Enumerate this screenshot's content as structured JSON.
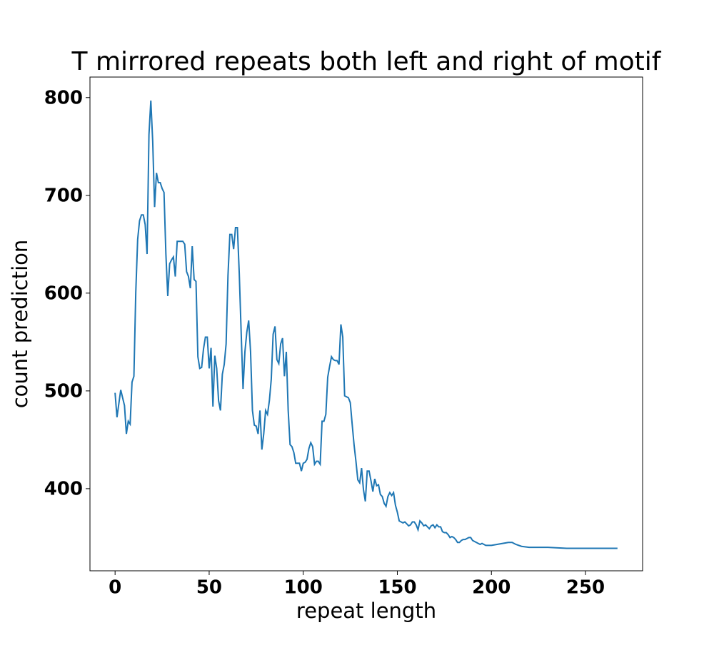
{
  "chart_data": {
    "type": "line",
    "title": "T mirrored repeats both left and right of motif",
    "xlabel": "repeat length",
    "ylabel": "count prediction",
    "xlim": [
      -13.35,
      280.35
    ],
    "ylim": [
      316,
      821
    ],
    "xticks": [
      0,
      50,
      100,
      150,
      200,
      250
    ],
    "yticks": [
      400,
      500,
      600,
      700,
      800
    ],
    "grid": false,
    "series": [
      {
        "name": "count prediction",
        "color": "#1f77b4",
        "x": [
          0,
          1,
          3,
          5,
          6,
          7,
          8,
          9,
          10,
          11,
          12,
          13,
          14,
          15,
          16,
          17,
          18,
          19,
          20,
          21,
          22,
          23,
          24,
          25,
          26,
          27,
          28,
          29,
          30,
          31,
          32,
          33,
          34,
          35,
          36,
          37,
          38,
          39,
          40,
          41,
          42,
          43,
          44,
          45,
          46,
          47,
          48,
          49,
          50,
          51,
          52,
          53,
          54,
          55,
          56,
          57,
          58,
          59,
          60,
          61,
          62,
          63,
          64,
          65,
          66,
          67,
          68,
          69,
          70,
          71,
          72,
          73,
          74,
          75,
          76,
          77,
          78,
          79,
          80,
          81,
          82,
          83,
          84,
          85,
          86,
          87,
          88,
          89,
          90,
          91,
          92,
          93,
          94,
          95,
          96,
          97,
          98,
          99,
          100,
          101,
          102,
          103,
          104,
          105,
          106,
          107,
          108,
          109,
          110,
          111,
          112,
          113,
          114,
          115,
          116,
          117,
          118,
          119,
          120,
          121,
          122,
          123,
          124,
          125,
          126,
          127,
          128,
          129,
          130,
          131,
          132,
          133,
          134,
          135,
          136,
          137,
          138,
          139,
          140,
          141,
          142,
          143,
          144,
          145,
          146,
          147,
          148,
          149,
          150,
          151,
          152,
          153,
          154,
          155,
          156,
          157,
          158,
          159,
          160,
          161,
          162,
          163,
          164,
          165,
          166,
          167,
          168,
          169,
          170,
          171,
          172,
          173,
          174,
          175,
          176,
          177,
          178,
          179,
          180,
          181,
          182,
          183,
          184,
          185,
          186,
          187,
          188,
          189,
          190,
          191,
          192,
          193,
          194,
          195,
          196,
          197,
          198,
          200,
          203,
          206,
          209,
          211,
          213,
          216,
          220,
          225,
          230,
          240,
          250,
          267
        ],
        "values": [
          498,
          473,
          501,
          485,
          456,
          469,
          466,
          509,
          515,
          601,
          655,
          674,
          680,
          680,
          670,
          640,
          762,
          797,
          755,
          688,
          723,
          713,
          713,
          707,
          703,
          640,
          597,
          630,
          634,
          637,
          617,
          653,
          653,
          653,
          653,
          650,
          622,
          617,
          605,
          648,
          614,
          612,
          535,
          523,
          524,
          543,
          555,
          555,
          523,
          544,
          484,
          536,
          523,
          490,
          480,
          517,
          527,
          548,
          618,
          660,
          660,
          645,
          667,
          667,
          620,
          560,
          502,
          540,
          560,
          572,
          540,
          480,
          465,
          464,
          456,
          480,
          440,
          456,
          480,
          476,
          490,
          512,
          558,
          566,
          532,
          528,
          548,
          554,
          515,
          540,
          480,
          445,
          443,
          437,
          426,
          426,
          426,
          418,
          426,
          427,
          430,
          441,
          447,
          443,
          425,
          428,
          428,
          425,
          469,
          469,
          476,
          514,
          525,
          535,
          532,
          531,
          531,
          527,
          568,
          555,
          495,
          494,
          493,
          488,
          466,
          445,
          428,
          409,
          406,
          421,
          399,
          387,
          418,
          418,
          408,
          397,
          410,
          403,
          404,
          394,
          392,
          385,
          382,
          392,
          396,
          393,
          396,
          383,
          376,
          367,
          366,
          365,
          366,
          364,
          362,
          363,
          366,
          366,
          363,
          358,
          367,
          365,
          362,
          363,
          361,
          359,
          362,
          363,
          360,
          363,
          361,
          361,
          356,
          355,
          355,
          353,
          350,
          351,
          350,
          348,
          345,
          345,
          347,
          348,
          348,
          349,
          350,
          350,
          347,
          346,
          345,
          344,
          343,
          344,
          343,
          342,
          342,
          342,
          343,
          344,
          345,
          345,
          343,
          341,
          340,
          340,
          340,
          339,
          339,
          339
        ]
      }
    ]
  }
}
